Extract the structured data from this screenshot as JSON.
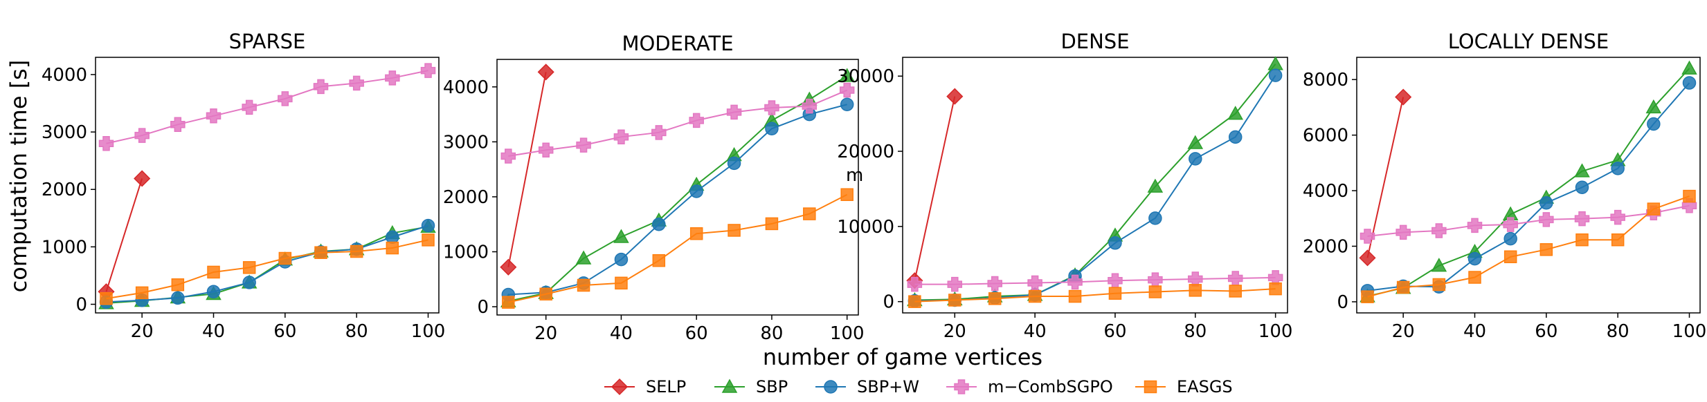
{
  "figure": {
    "xlabel": "number of game vertices",
    "ylabel": "computation time [s]",
    "stray_label": "m"
  },
  "series_styles": [
    {
      "name": "SELP",
      "color": "#d62728",
      "marker": "diamond"
    },
    {
      "name": "SBP",
      "color": "#2ca02c",
      "marker": "triangle"
    },
    {
      "name": "SBP+W",
      "color": "#1f77b4",
      "marker": "circle"
    },
    {
      "name": "m−CombSGPO",
      "color": "#e377c2",
      "marker": "plus"
    },
    {
      "name": "EASGS",
      "color": "#ff7f0e",
      "marker": "square"
    }
  ],
  "chart_data": [
    {
      "type": "line",
      "title": "SPARSE",
      "xlabel": "",
      "ylabel": "computation time [s]",
      "xlim": [
        7,
        103
      ],
      "ylim": [
        -150,
        4300
      ],
      "xticks": [
        20,
        40,
        60,
        80,
        100
      ],
      "yticks": [
        0,
        1000,
        2000,
        3000,
        4000
      ],
      "series": [
        {
          "name": "SELP",
          "x": [
            10,
            20
          ],
          "values": [
            220,
            2190
          ]
        },
        {
          "name": "SBP",
          "x": [
            10,
            20,
            30,
            40,
            50,
            60,
            70,
            80,
            90,
            100
          ],
          "values": [
            20,
            60,
            120,
            180,
            380,
            780,
            920,
            960,
            1240,
            1350
          ]
        },
        {
          "name": "SBP+W",
          "x": [
            10,
            20,
            30,
            40,
            50,
            60,
            70,
            80,
            90,
            100
          ],
          "values": [
            40,
            70,
            110,
            220,
            380,
            740,
            910,
            960,
            1170,
            1370
          ]
        },
        {
          "name": "m−CombSGPO",
          "x": [
            10,
            20,
            30,
            40,
            50,
            60,
            70,
            80,
            90,
            100
          ],
          "values": [
            2800,
            2940,
            3130,
            3280,
            3430,
            3580,
            3790,
            3850,
            3940,
            4070
          ]
        },
        {
          "name": "EASGS",
          "x": [
            10,
            20,
            30,
            40,
            50,
            60,
            70,
            80,
            90,
            100
          ],
          "values": [
            100,
            200,
            340,
            560,
            640,
            800,
            900,
            920,
            980,
            1120
          ]
        }
      ]
    },
    {
      "type": "line",
      "title": "MODERATE",
      "xlabel": "",
      "ylabel": "",
      "xlim": [
        7,
        103
      ],
      "ylim": [
        -150,
        4500
      ],
      "xticks": [
        20,
        40,
        60,
        80,
        100
      ],
      "yticks": [
        0,
        1000,
        2000,
        3000,
        4000
      ],
      "series": [
        {
          "name": "SELP",
          "x": [
            10,
            20
          ],
          "values": [
            720,
            4270
          ]
        },
        {
          "name": "SBP",
          "x": [
            10,
            20,
            30,
            40,
            50,
            60,
            70,
            80,
            90,
            100
          ],
          "values": [
            100,
            250,
            880,
            1270,
            1570,
            2220,
            2760,
            3390,
            3770,
            4200
          ]
        },
        {
          "name": "SBP+W",
          "x": [
            10,
            20,
            30,
            40,
            50,
            60,
            70,
            80,
            90,
            100
          ],
          "values": [
            220,
            260,
            430,
            860,
            1500,
            2100,
            2610,
            3240,
            3500,
            3680
          ]
        },
        {
          "name": "m−CombSGPO",
          "x": [
            10,
            20,
            30,
            40,
            50,
            60,
            70,
            80,
            90,
            100
          ],
          "values": [
            2740,
            2850,
            2940,
            3090,
            3170,
            3390,
            3540,
            3620,
            3650,
            3940
          ]
        },
        {
          "name": "EASGS",
          "x": [
            10,
            20,
            30,
            40,
            50,
            60,
            70,
            80,
            90,
            100
          ],
          "values": [
            80,
            230,
            390,
            430,
            840,
            1330,
            1390,
            1510,
            1690,
            2040
          ]
        }
      ]
    },
    {
      "type": "line",
      "title": "DENSE",
      "xlabel": "",
      "ylabel": "",
      "xlim": [
        7,
        103
      ],
      "ylim": [
        -1500,
        32500
      ],
      "xticks": [
        20,
        40,
        60,
        80,
        100
      ],
      "yticks": [
        0,
        10000,
        20000,
        30000
      ],
      "series": [
        {
          "name": "SELP",
          "x": [
            10,
            20
          ],
          "values": [
            2800,
            27300
          ]
        },
        {
          "name": "SBP",
          "x": [
            10,
            20,
            30,
            40,
            50,
            60,
            70,
            80,
            90,
            100
          ],
          "values": [
            200,
            300,
            700,
            900,
            3500,
            8800,
            15300,
            21100,
            25000,
            31600
          ]
        },
        {
          "name": "SBP+W",
          "x": [
            10,
            20,
            30,
            40,
            50,
            60,
            70,
            80,
            90,
            100
          ],
          "values": [
            100,
            200,
            500,
            900,
            3400,
            7800,
            11100,
            19000,
            21900,
            30100
          ]
        },
        {
          "name": "m−CombSGPO",
          "x": [
            10,
            20,
            30,
            40,
            50,
            60,
            70,
            80,
            90,
            100
          ],
          "values": [
            2300,
            2300,
            2400,
            2500,
            2600,
            2800,
            2900,
            3000,
            3100,
            3200
          ]
        },
        {
          "name": "EASGS",
          "x": [
            10,
            20,
            30,
            40,
            50,
            60,
            70,
            80,
            90,
            100
          ],
          "values": [
            0,
            200,
            400,
            700,
            700,
            1100,
            1300,
            1500,
            1400,
            1700
          ]
        }
      ]
    },
    {
      "type": "line",
      "title": "LOCALLY DENSE",
      "xlabel": "",
      "ylabel": "",
      "xlim": [
        7,
        103
      ],
      "ylim": [
        -400,
        8800
      ],
      "xticks": [
        20,
        40,
        60,
        80,
        100
      ],
      "yticks": [
        0,
        2000,
        4000,
        6000,
        8000
      ],
      "series": [
        {
          "name": "SELP",
          "x": [
            10,
            20
          ],
          "values": [
            1580,
            7370
          ]
        },
        {
          "name": "SBP",
          "x": [
            10,
            20,
            30,
            40,
            50,
            60,
            70,
            80,
            90,
            100
          ],
          "values": [
            200,
            500,
            1300,
            1800,
            3150,
            3750,
            4700,
            5100,
            7000,
            8400
          ]
        },
        {
          "name": "SBP+W",
          "x": [
            10,
            20,
            30,
            40,
            50,
            60,
            70,
            80,
            90,
            100
          ],
          "values": [
            400,
            560,
            540,
            1550,
            2270,
            3560,
            4120,
            4800,
            6400,
            7880
          ]
        },
        {
          "name": "m−CombSGPO",
          "x": [
            10,
            20,
            30,
            40,
            50,
            60,
            70,
            80,
            90,
            100
          ],
          "values": [
            2360,
            2500,
            2560,
            2750,
            2780,
            2960,
            2990,
            3040,
            3200,
            3460
          ]
        },
        {
          "name": "EASGS",
          "x": [
            10,
            20,
            30,
            40,
            50,
            60,
            70,
            80,
            90,
            100
          ],
          "values": [
            180,
            520,
            620,
            880,
            1620,
            1880,
            2230,
            2230,
            3340,
            3800
          ]
        }
      ]
    }
  ]
}
